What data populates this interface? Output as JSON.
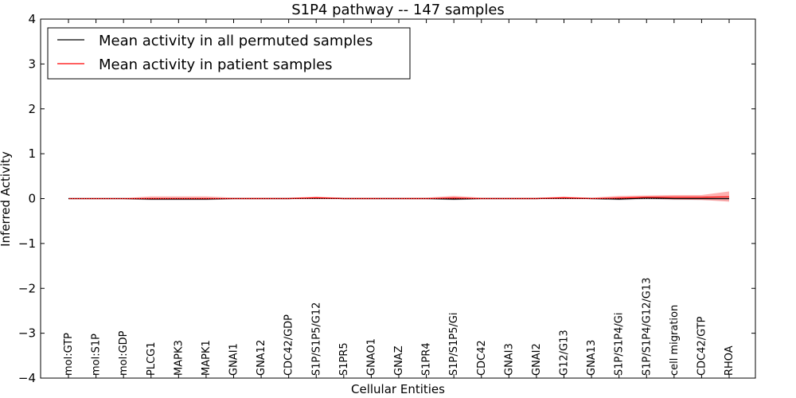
{
  "chart_data": {
    "type": "line",
    "title": "S1P4 pathway -- 147 samples",
    "xlabel": "Cellular Entities",
    "ylabel": "Inferred Activity",
    "ylim": [
      -4,
      4
    ],
    "yticks": [
      "4",
      "3",
      "2",
      "1",
      "0",
      "−1",
      "−2",
      "−3",
      "−4"
    ],
    "ytick_values": [
      4,
      3,
      2,
      1,
      0,
      -1,
      -2,
      -3,
      -4
    ],
    "grid": false,
    "legend_position": "top-left",
    "categories": [
      "mol:GTP",
      "mol:S1P",
      "mol:GDP",
      "PLCG1",
      "MAPK3",
      "MAPK1",
      "GNAI1",
      "GNA12",
      "CDC42/GDP",
      "S1P/S1P5/G12",
      "S1PR5",
      "GNAO1",
      "GNAZ",
      "S1PR4",
      "S1P/S1P5/Gi",
      "CDC42",
      "GNAI3",
      "GNAI2",
      "G12/G13",
      "GNA13",
      "S1P/S1P4/Gi",
      "S1P/S1P4/G12/G13",
      "cell migration",
      "CDC42/GTP",
      "RHOA"
    ],
    "series": [
      {
        "name": "Mean activity in all permuted samples",
        "color": "#000000",
        "values": [
          0,
          0,
          0,
          -0.01,
          -0.01,
          -0.01,
          0,
          0,
          0,
          0.01,
          0,
          0,
          0,
          0,
          -0.01,
          0,
          0,
          0,
          0.01,
          0,
          -0.01,
          0.01,
          0,
          0,
          0
        ],
        "band_low": [
          -0.01,
          -0.01,
          -0.01,
          -0.04,
          -0.04,
          -0.04,
          -0.01,
          -0.01,
          -0.01,
          -0.01,
          -0.01,
          -0.01,
          -0.01,
          -0.01,
          -0.04,
          -0.01,
          -0.01,
          -0.01,
          -0.01,
          -0.01,
          -0.04,
          -0.02,
          -0.03,
          -0.03,
          -0.04
        ],
        "band_high": [
          0.01,
          0.01,
          0.01,
          0.02,
          0.02,
          0.02,
          0.01,
          0.01,
          0.01,
          0.02,
          0.01,
          0.01,
          0.01,
          0.01,
          0.02,
          0.01,
          0.01,
          0.01,
          0.02,
          0.01,
          0.02,
          0.03,
          0.03,
          0.03,
          0.03
        ]
      },
      {
        "name": "Mean activity in patient samples",
        "color": "#ff0000",
        "values": [
          0,
          0,
          0,
          0,
          0,
          0,
          0,
          0,
          0,
          0.02,
          0,
          0,
          0,
          0,
          0.01,
          0,
          0,
          0,
          0.02,
          0,
          0.01,
          0.03,
          0.03,
          0.03,
          0.04
        ],
        "band_low": [
          -0.01,
          -0.01,
          -0.01,
          -0.02,
          -0.02,
          -0.02,
          -0.01,
          -0.01,
          -0.01,
          -0.01,
          -0.01,
          -0.01,
          -0.01,
          -0.01,
          -0.02,
          -0.01,
          -0.01,
          -0.01,
          -0.01,
          -0.01,
          -0.01,
          0,
          -0.02,
          -0.03,
          -0.07
        ],
        "band_high": [
          0.01,
          0.01,
          0.01,
          0.05,
          0.05,
          0.05,
          0.02,
          0.02,
          0.02,
          0.04,
          0.02,
          0.02,
          0.02,
          0.02,
          0.06,
          0.02,
          0.02,
          0.02,
          0.04,
          0.02,
          0.06,
          0.07,
          0.08,
          0.08,
          0.16
        ]
      }
    ],
    "legend": [
      {
        "label": "Mean activity in all permuted samples",
        "color": "#000000"
      },
      {
        "label": "Mean activity in patient samples",
        "color": "#ff0000"
      }
    ]
  }
}
